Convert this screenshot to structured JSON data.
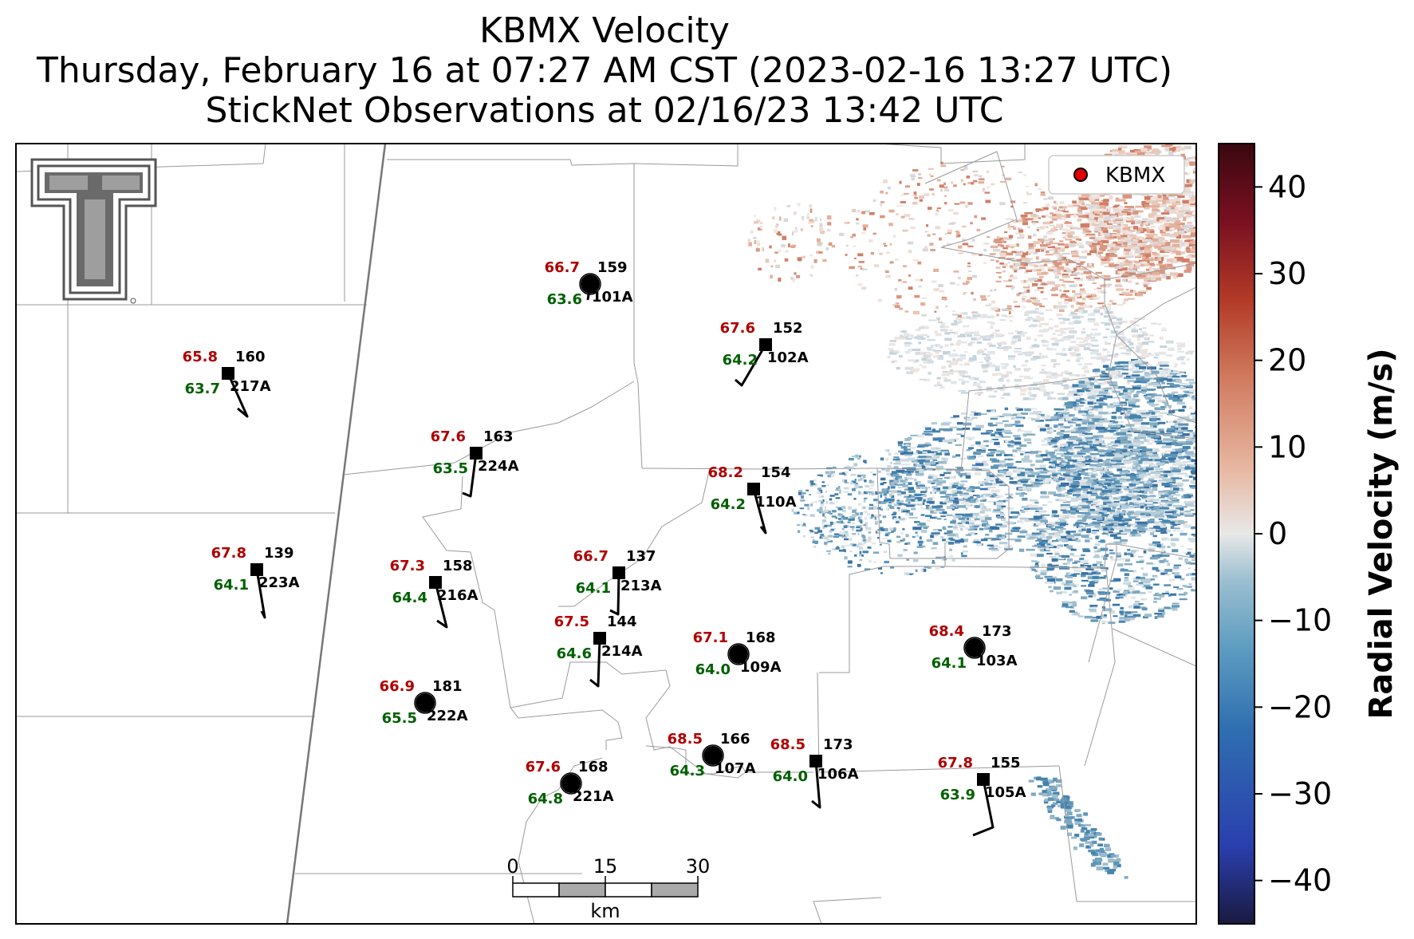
{
  "title": {
    "line1": "KBMX Velocity",
    "line2": "Thursday, February 16 at 07:27 AM CST (2023-02-16 13:27 UTC)",
    "line3": "StickNet Observations at 02/16/23 13:42 UTC"
  },
  "legend": {
    "label": "KBMX",
    "marker_color": "#e00000"
  },
  "colorbar": {
    "label": "Radial Velocity (m/s)",
    "ticks": [
      "40",
      "30",
      "20",
      "10",
      "0",
      "−10",
      "−20",
      "−30",
      "−40"
    ],
    "range": [
      -45,
      45
    ],
    "colors": [
      "#1a1a40",
      "#2a3fae",
      "#2f6fb0",
      "#5b9bc0",
      "#9bbfd0",
      "#e8e8e8",
      "#e8b9a3",
      "#d07a5e",
      "#b23a26",
      "#7a1020",
      "#3a0810"
    ]
  },
  "scale_bar": {
    "ticks": [
      "0",
      "15",
      "30"
    ],
    "unit": "km"
  },
  "logo": {
    "name": "Texas Tech Double T"
  },
  "stations": [
    {
      "id": "101A",
      "temp": "66.7",
      "dew": "63.6",
      "pres": "159",
      "marker": "circle"
    },
    {
      "id": "102A",
      "temp": "67.6",
      "dew": "64.2",
      "pres": "152",
      "marker": "square"
    },
    {
      "id": "217A",
      "temp": "65.8",
      "dew": "63.7",
      "pres": "160",
      "marker": "square"
    },
    {
      "id": "224A",
      "temp": "67.6",
      "dew": "63.5",
      "pres": "163",
      "marker": "square"
    },
    {
      "id": "110A",
      "temp": "68.2",
      "dew": "64.2",
      "pres": "154",
      "marker": "square"
    },
    {
      "id": "223A",
      "temp": "67.8",
      "dew": "64.1",
      "pres": "139",
      "marker": "square"
    },
    {
      "id": "216A",
      "temp": "67.3",
      "dew": "64.4",
      "pres": "158",
      "marker": "square"
    },
    {
      "id": "213A",
      "temp": "66.7",
      "dew": "64.1",
      "pres": "137",
      "marker": "square"
    },
    {
      "id": "214A",
      "temp": "67.5",
      "dew": "64.6",
      "pres": "144",
      "marker": "square"
    },
    {
      "id": "109A",
      "temp": "67.1",
      "dew": "64.0",
      "pres": "168",
      "marker": "circle"
    },
    {
      "id": "103A",
      "temp": "68.4",
      "dew": "64.1",
      "pres": "173",
      "marker": "circle"
    },
    {
      "id": "222A",
      "temp": "66.9",
      "dew": "65.5",
      "pres": "181",
      "marker": "circle"
    },
    {
      "id": "107A",
      "temp": "68.5",
      "dew": "64.3",
      "pres": "166",
      "marker": "circle"
    },
    {
      "id": "106A",
      "temp": "68.5",
      "dew": "64.0",
      "pres": "173",
      "marker": "square"
    },
    {
      "id": "221A",
      "temp": "67.6",
      "dew": "64.8",
      "pres": "168",
      "marker": "circle"
    },
    {
      "id": "105A",
      "temp": "67.8",
      "dew": "63.9",
      "pres": "155",
      "marker": "square"
    }
  ]
}
